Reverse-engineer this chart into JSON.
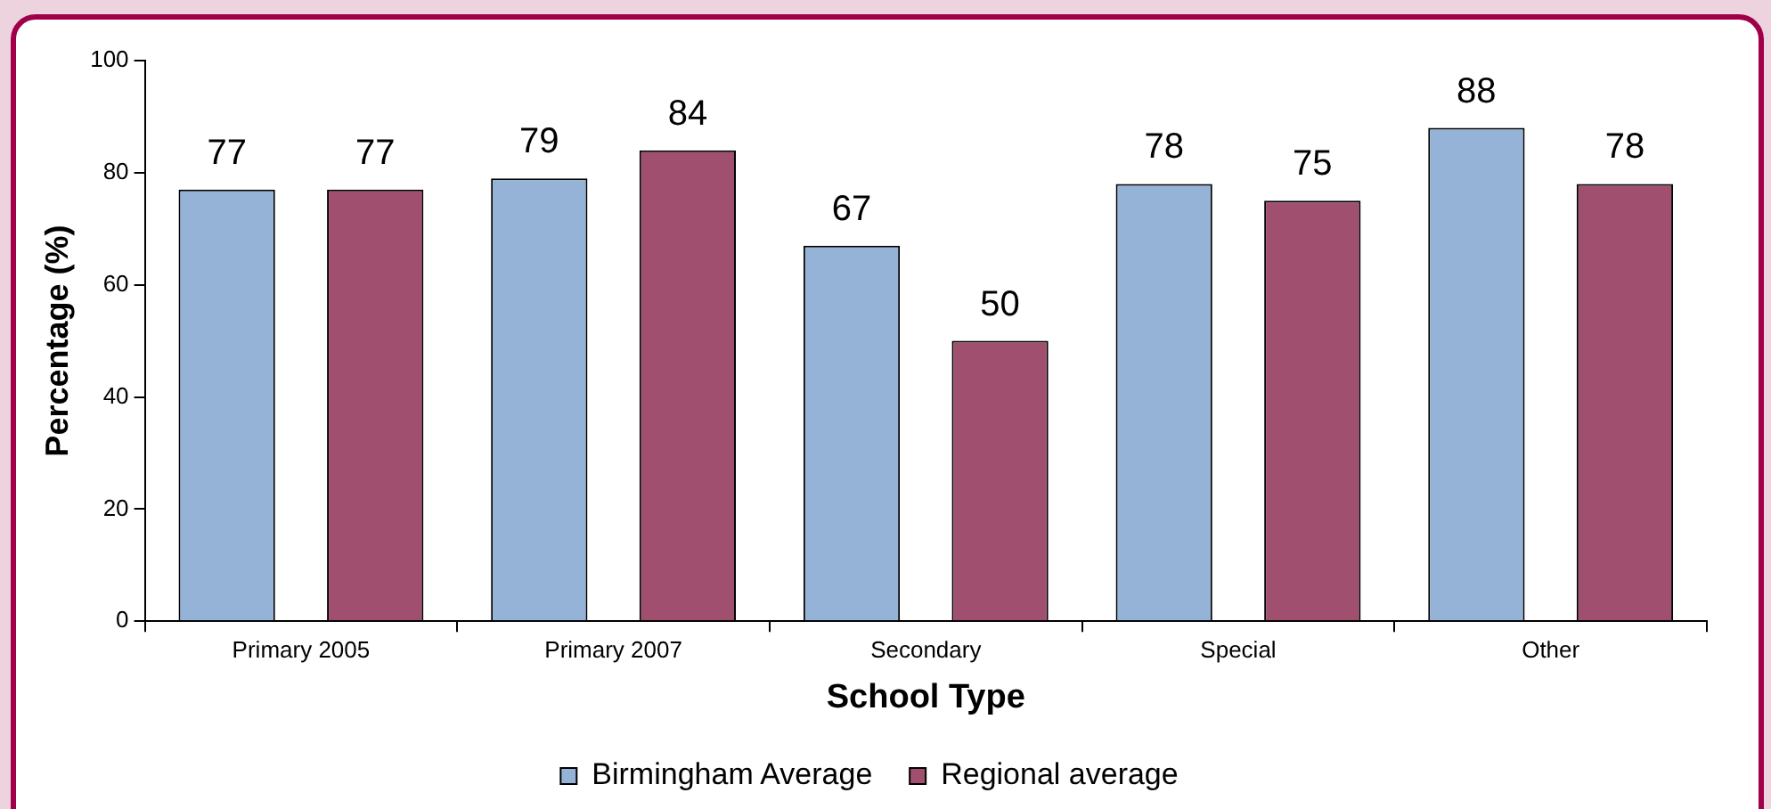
{
  "chart_data": {
    "type": "bar",
    "xlabel": "School Type",
    "ylabel": "Percentage (%)",
    "categories": [
      "Primary 2005",
      "Primary 2007",
      "Secondary",
      "Special",
      "Other"
    ],
    "series": [
      {
        "name": "Birmingham Average",
        "color": "#95b3d7",
        "values": [
          77,
          79,
          67,
          78,
          88
        ]
      },
      {
        "name": "Regional average",
        "color": "#a0506e",
        "values": [
          77,
          84,
          50,
          75,
          78
        ]
      }
    ],
    "ylim": [
      0,
      100
    ],
    "yticks": [
      0,
      20,
      40,
      60,
      80,
      100
    ],
    "grid": false,
    "legend": "bottom",
    "data_labels": true
  }
}
